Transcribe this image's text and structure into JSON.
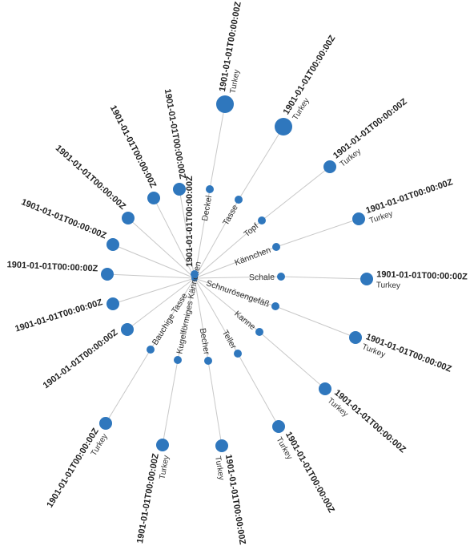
{
  "diagram": {
    "root_label": "",
    "colors": {
      "node": "#2f77bd",
      "link": "#c8c8c8",
      "text": "#222222"
    },
    "categories": [
      {
        "name": "Deckel",
        "leaf": {
          "date": "1901-01-01T00:00:00Z",
          "place": "Turkey"
        }
      },
      {
        "name": "Tasse",
        "leaf": {
          "date": "1901-01-01T00:00:00Z",
          "place": "Turkey"
        }
      },
      {
        "name": "Topf",
        "leaf": {
          "date": "1901-01-01T00:00:00Z",
          "place": "Turkey"
        }
      },
      {
        "name": "Kännchen",
        "leaf": {
          "date": "1901-01-01T00:00:00Z",
          "place": "Turkey"
        }
      },
      {
        "name": "Schale",
        "leaf": {
          "date": "1901-01-01T00:00:00Z",
          "place": "Turkey"
        }
      },
      {
        "name": "Schnurösengefäß",
        "leaf": {
          "date": "1901-01-01T00:00:00Z",
          "place": "Turkey"
        }
      },
      {
        "name": "Kanne",
        "leaf": {
          "date": "1901-01-01T00:00:00Z",
          "place": "Turkey"
        }
      },
      {
        "name": "Teller",
        "leaf": {
          "date": "1901-01-01T00:00:00Z",
          "place": "Turkey"
        }
      },
      {
        "name": "Becher",
        "leaf": {
          "date": "1901-01-01T00:00:00Z",
          "place": "Turkey"
        }
      },
      {
        "name": "Kugelförmiges Kännchen",
        "leaf": {
          "date": "1901-01-01T00:00:00Z",
          "place": "Turkey"
        }
      },
      {
        "name": "Bauchige Tasse",
        "leaf": {
          "date": "1901-01-01T00:00:00Z",
          "place": "Turkey"
        }
      },
      {
        "name": "",
        "leaf": {
          "date": "1901-01-01T00:00:00Z",
          "place": ""
        }
      },
      {
        "name": "",
        "leaf": {
          "date": "1901-01-01T00:00:00Z",
          "place": ""
        }
      },
      {
        "name": "",
        "leaf": {
          "date": "1901-01-01T00:00:00Z",
          "place": ""
        }
      },
      {
        "name": "",
        "leaf": {
          "date": "1901-01-01T00:00:00Z",
          "place": ""
        }
      },
      {
        "name": "",
        "leaf": {
          "date": "1901-01-01T00:00:00Z",
          "place": ""
        }
      },
      {
        "name": "",
        "leaf": {
          "date": "1901-01-01T00:00:00Z",
          "place": ""
        }
      },
      {
        "name": "",
        "leaf": {
          "date": "1901-01-01T00:00:00Z",
          "place": ""
        }
      },
      {
        "name": "",
        "leaf": {
          "date": "1901-01-01T00:00:00Z",
          "place": ""
        }
      }
    ]
  }
}
